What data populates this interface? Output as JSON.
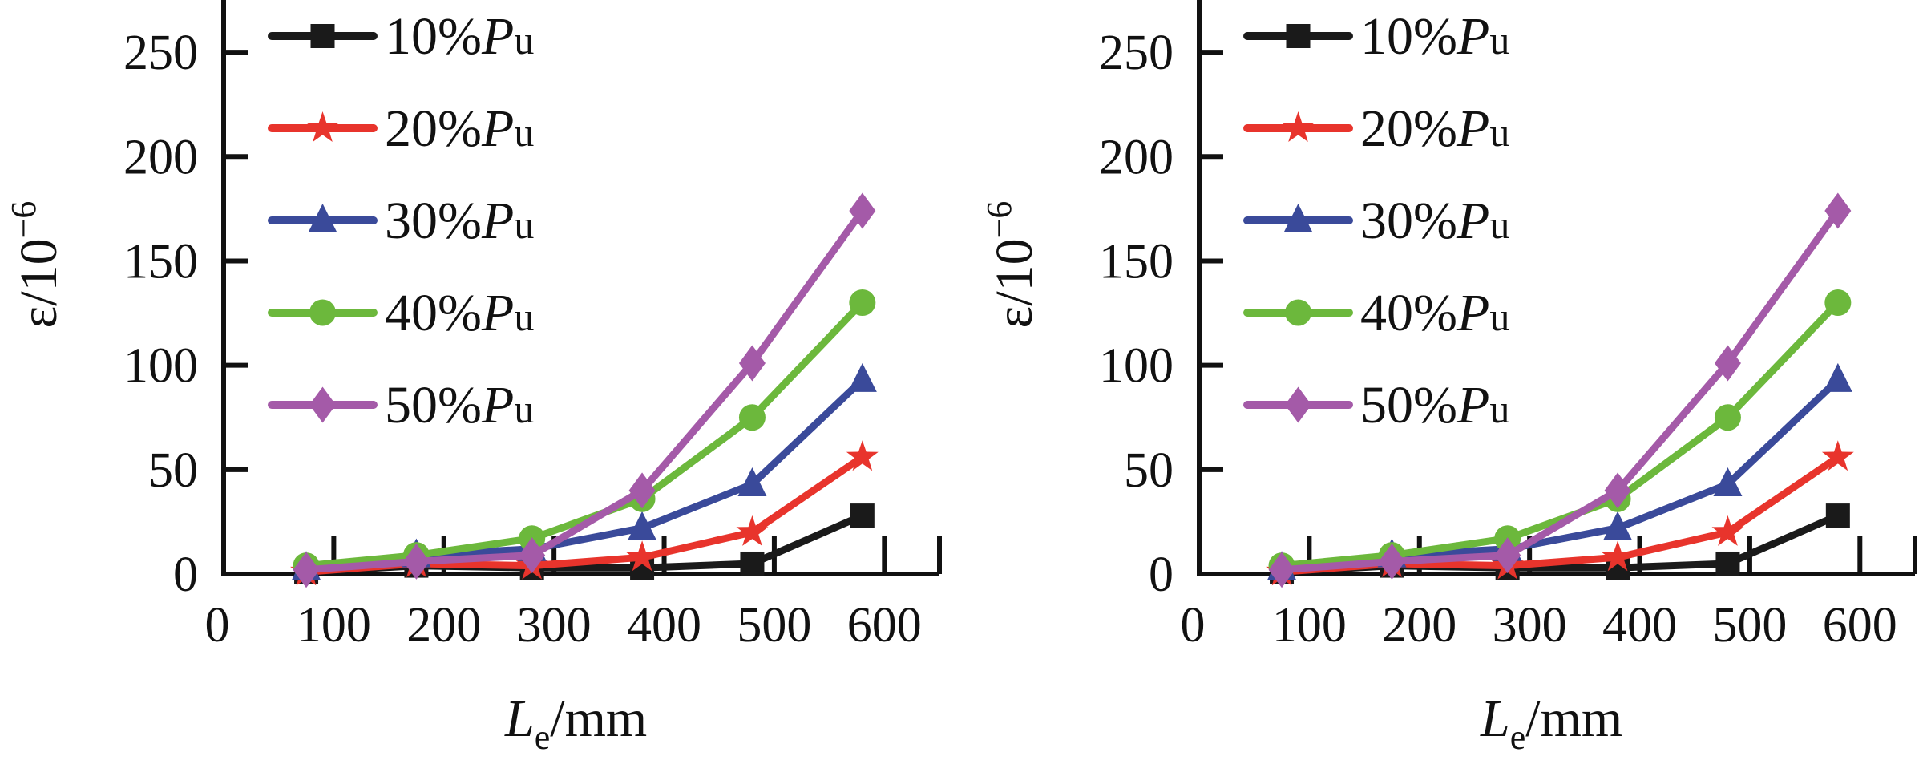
{
  "chart_data": [
    {
      "type": "line",
      "xlabel_main": "L",
      "xlabel_sub": "e",
      "xlabel_unit": "/mm",
      "ylabel_main": "ε/10",
      "ylabel_sup": "−6",
      "xlim": [
        0,
        650
      ],
      "ylim": [
        0,
        275
      ],
      "xticks": [
        0,
        100,
        200,
        300,
        400,
        500,
        600
      ],
      "yticks": [
        0,
        50,
        100,
        150,
        200,
        250
      ],
      "grid": false,
      "legend_position": "top-left",
      "x": [
        75,
        175,
        280,
        380,
        480,
        580
      ],
      "series": [
        {
          "name": "10%Pu",
          "name_main": "10%",
          "name_italic": "P",
          "name_sub": "u",
          "color": "#1a1a1a",
          "marker": "square",
          "values": [
            1,
            4,
            3,
            3,
            5,
            28
          ]
        },
        {
          "name": "20%Pu",
          "name_main": "20%",
          "name_italic": "P",
          "name_sub": "u",
          "color": "#e8342c",
          "marker": "star",
          "values": [
            1,
            5,
            4,
            8,
            20,
            56
          ]
        },
        {
          "name": "30%Pu",
          "name_main": "30%",
          "name_italic": "P",
          "name_sub": "u",
          "color": "#3a4a9a",
          "marker": "triangle",
          "values": [
            3,
            9,
            12,
            22,
            43,
            93
          ]
        },
        {
          "name": "40%Pu",
          "name_main": "40%",
          "name_italic": "P",
          "name_sub": "u",
          "color": "#6cb83c",
          "marker": "circle",
          "values": [
            4,
            9,
            17,
            36,
            75,
            130
          ]
        },
        {
          "name": "50%Pu",
          "name_main": "50%",
          "name_italic": "P",
          "name_sub": "u",
          "color": "#a45aa8",
          "marker": "diamond",
          "values": [
            2,
            6,
            9,
            40,
            101,
            174
          ]
        }
      ]
    },
    {
      "type": "line",
      "xlabel_main": "L",
      "xlabel_sub": "e",
      "xlabel_unit": "/mm",
      "ylabel_main": "ε/10",
      "ylabel_sup": "−6",
      "xlim": [
        0,
        650
      ],
      "ylim": [
        0,
        275
      ],
      "xticks": [
        0,
        100,
        200,
        300,
        400,
        500,
        600
      ],
      "yticks": [
        0,
        50,
        100,
        150,
        200,
        250
      ],
      "grid": false,
      "legend_position": "top-left",
      "x": [
        75,
        175,
        280,
        380,
        480,
        580
      ],
      "series": [
        {
          "name": "10%Pu",
          "name_main": "10%",
          "name_italic": "P",
          "name_sub": "u",
          "color": "#1a1a1a",
          "marker": "square",
          "values": [
            1,
            4,
            3,
            3,
            5,
            28
          ]
        },
        {
          "name": "20%Pu",
          "name_main": "20%",
          "name_italic": "P",
          "name_sub": "u",
          "color": "#e8342c",
          "marker": "star",
          "values": [
            1,
            5,
            4,
            8,
            20,
            56
          ]
        },
        {
          "name": "30%Pu",
          "name_main": "30%",
          "name_italic": "P",
          "name_sub": "u",
          "color": "#3a4a9a",
          "marker": "triangle",
          "values": [
            3,
            9,
            12,
            22,
            43,
            93
          ]
        },
        {
          "name": "40%Pu",
          "name_main": "40%",
          "name_italic": "P",
          "name_sub": "u",
          "color": "#6cb83c",
          "marker": "circle",
          "values": [
            4,
            9,
            17,
            36,
            75,
            130
          ]
        },
        {
          "name": "50%Pu",
          "name_main": "50%",
          "name_italic": "P",
          "name_sub": "u",
          "color": "#a45aa8",
          "marker": "diamond",
          "values": [
            2,
            6,
            9,
            40,
            101,
            174
          ]
        }
      ]
    }
  ]
}
